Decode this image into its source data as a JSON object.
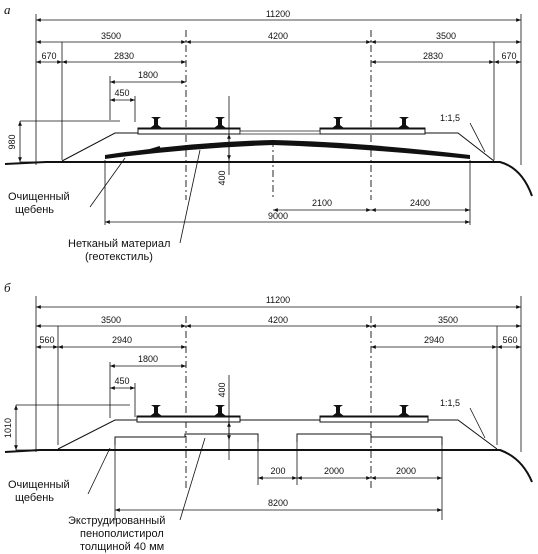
{
  "panel_a": {
    "letter": "а",
    "dims": {
      "total": "11200",
      "left_half": "3500",
      "middle": "4200",
      "right_half": "3500",
      "left_edge": "670",
      "left_inner": "2830",
      "right_inner": "2830",
      "right_edge": "670",
      "offset": "1800",
      "small": "450",
      "height": "980",
      "depth": "400",
      "right_a": "2100",
      "right_b": "2400",
      "base": "9000",
      "slope": "1:1,5"
    },
    "label_ballast": [
      "Очищенный",
      "щебень"
    ],
    "label_material": [
      "Нетканый материал",
      "(геотекстиль)"
    ]
  },
  "panel_b": {
    "letter": "б",
    "dims": {
      "total": "11200",
      "left_half": "3500",
      "middle": "4200",
      "right_half": "3500",
      "left_edge": "560",
      "left_inner": "2940",
      "right_inner": "2940",
      "right_edge": "560",
      "offset": "1800",
      "small": "450",
      "height": "1010",
      "depth": "400",
      "gap": "200",
      "right_a": "2000",
      "right_b": "2000",
      "base": "8200",
      "slope": "1:1,5"
    },
    "label_ballast": [
      "Очищенный",
      "щебень"
    ],
    "label_material": [
      "Экструдированный",
      "пенополистирол",
      "толщиной 40 мм"
    ]
  }
}
